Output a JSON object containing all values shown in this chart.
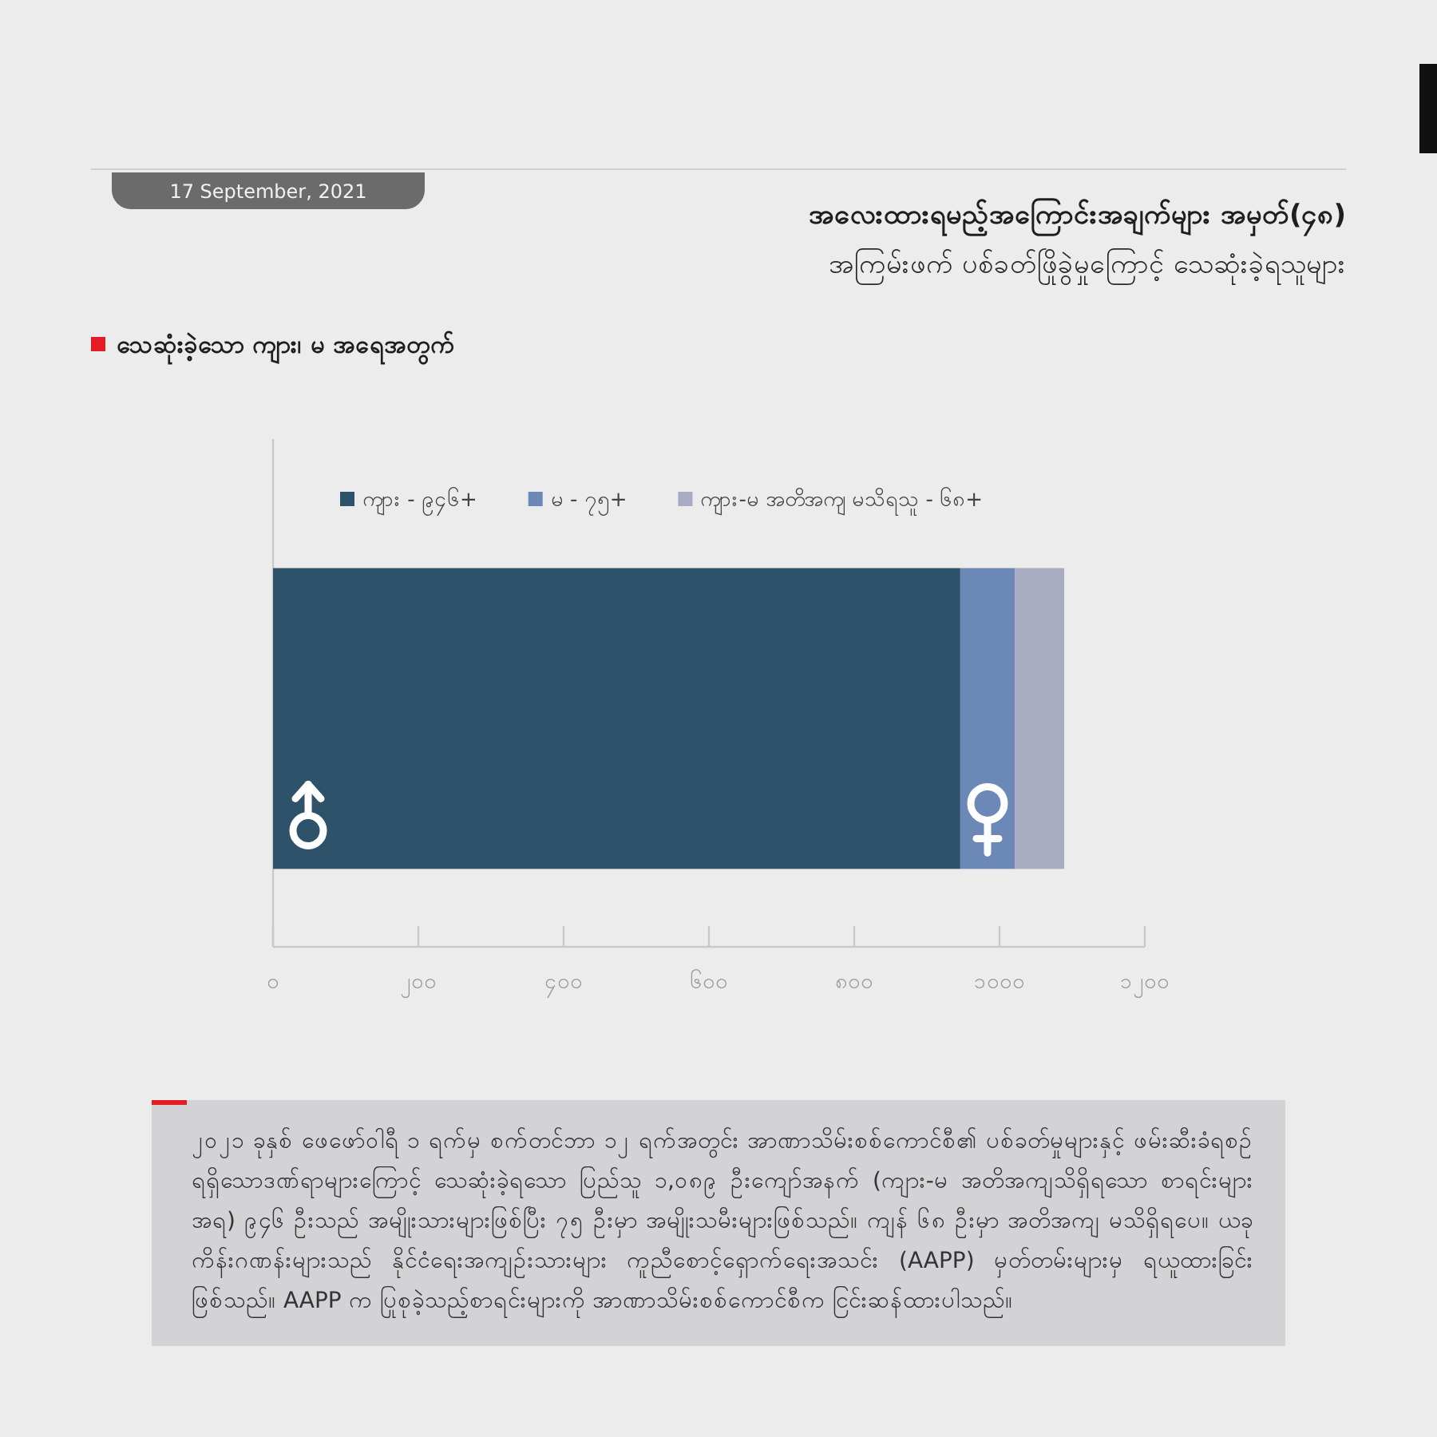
{
  "chart_data": {
    "type": "bar",
    "orientation": "horizontal",
    "stacked": true,
    "title": "အလေးထားရမည့်အကြောင်းအချက်များ အမှတ်(၄၈)",
    "subtitle": "အကြမ်းဖက် ပစ်ခတ်ဖြိုခွဲမှုကြောင့် သေဆုံးခဲ့ရသူများ",
    "annotations": [
      "17 September, 2021",
      "သေဆုံးခဲ့သော ကျား၊ မ အရေအတွက်",
      "၂၀၂၁ ခုနှစ် ဖေဖော်ဝါရီ ၁ ရက်မှ စက်တင်ဘာ ၁၂ ရက်အတွင်း အာဏာသိမ်းစစ်ကောင်စီ၏ ပစ်ခတ်မှုများနှင့် ဖမ်းဆီးခံရစဉ် ရရှိသောဒဏ်ရာများကြောင့် သေဆုံးခဲ့ရသော ပြည်သူ ၁,၀၈၉ ဦးကျော်အနက် (ကျား-မ အတိအကျသိရှိရသော စာရင်းများအရ) ၉၄၆ ဦးသည် အမျိုးသားများဖြစ်ပြီး ၇၅ ဦးမှာ အမျိုးသမီးများဖြစ်သည်။ ကျန် ၆၈ ဦးမှာ အတိအကျ မသိရှိရပေ။ ယခုကိန်းဂဏန်းများသည် နိုင်ငံရေးအကျဉ်းသားများ ကူညီစောင့်ရှောက်ရေးအသင်း (AAPP) မှတ်တမ်းများမှ ရယူထားခြင်းဖြစ်သည်။ AAPP က ပြုစုခဲ့သည့်စာရင်းများကို အာဏာသိမ်းစစ်ကောင်စီက ငြင်းဆန်ထားပါသည်။"
    ],
    "categories": [
      null
    ],
    "series": [
      {
        "name": "ကျား - ၉၄၆+",
        "color": "#2d5269",
        "values": [
          946
        ]
      },
      {
        "name": "မ - ၇၅+",
        "color": "#6b88b7",
        "values": [
          75
        ]
      },
      {
        "name": "ကျား-မ အတိအကျ မသိရသူ - ၆၈+",
        "color": "#a9abc2",
        "values": [
          68
        ]
      }
    ],
    "xlim": [
      0,
      1200
    ],
    "xticks": [
      {
        "value": 0,
        "label": "၀"
      },
      {
        "value": 200,
        "label": "၂၀၀"
      },
      {
        "value": 400,
        "label": "၄၀၀"
      },
      {
        "value": 600,
        "label": "၆၀၀"
      },
      {
        "value": 800,
        "label": "၈၀၀"
      },
      {
        "value": 1000,
        "label": "၁၀၀၀"
      },
      {
        "value": 1200,
        "label": "၁၂၀၀"
      }
    ],
    "tick_labels": "x",
    "legend": "top"
  }
}
